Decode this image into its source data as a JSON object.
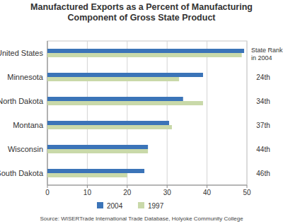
{
  "chart_data": {
    "type": "bar",
    "orientation": "horizontal",
    "title": "Manufactured Exports as a Percent of Manufacturing\nComponent of Gross State Product",
    "categories": [
      "United States",
      "Minnesota",
      "North Dakota",
      "Montana",
      "Wisconsin",
      "South Dakota"
    ],
    "series": [
      {
        "name": "2004",
        "color": "#3b74b8",
        "values": [
          49.3,
          39,
          34,
          30.5,
          25.2,
          24.3
        ]
      },
      {
        "name": "1997",
        "color": "#c9d9a9",
        "values": [
          48.7,
          33,
          39,
          31.2,
          25.2,
          20
        ]
      }
    ],
    "xlim": [
      0,
      50
    ],
    "xticks": [
      0,
      10,
      20,
      30,
      40,
      50
    ],
    "grid": true,
    "legend": "bottom",
    "rank_label": "State Rank\nin 2004",
    "ranks": [
      null,
      "24th",
      "34th",
      "37th",
      "44th",
      "46th"
    ],
    "source": "Source: WISERTrade International Trade Database, Holyoke Community College"
  }
}
